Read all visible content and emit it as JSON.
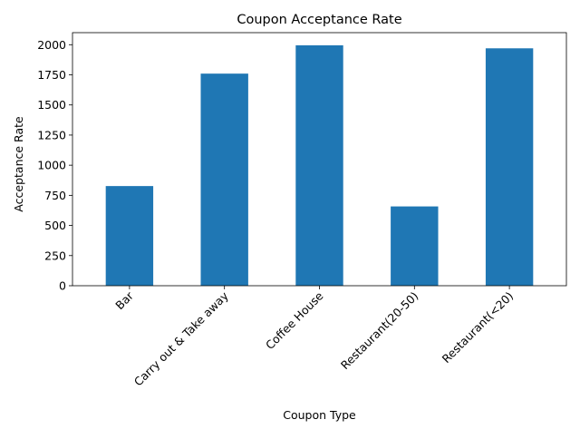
{
  "chart_data": {
    "type": "bar",
    "title": "Coupon Acceptance Rate",
    "xlabel": "Coupon Type",
    "ylabel": "Acceptance Rate",
    "categories": [
      "Bar",
      "Carry out & Take away",
      "Coffee House",
      "Restaurant(20-50)",
      "Restaurant(<20)"
    ],
    "values": [
      827,
      1760,
      1995,
      658,
      1970
    ],
    "ylim": [
      0,
      2100
    ],
    "yticks": [
      0,
      250,
      500,
      750,
      1000,
      1250,
      1500,
      1750,
      2000
    ],
    "ytick_labels": [
      "0",
      "250",
      "500",
      "750",
      "1000",
      "1250",
      "1500",
      "1750",
      "2000"
    ],
    "bar_color": "#1f77b4",
    "grid": false,
    "legend": "none"
  }
}
